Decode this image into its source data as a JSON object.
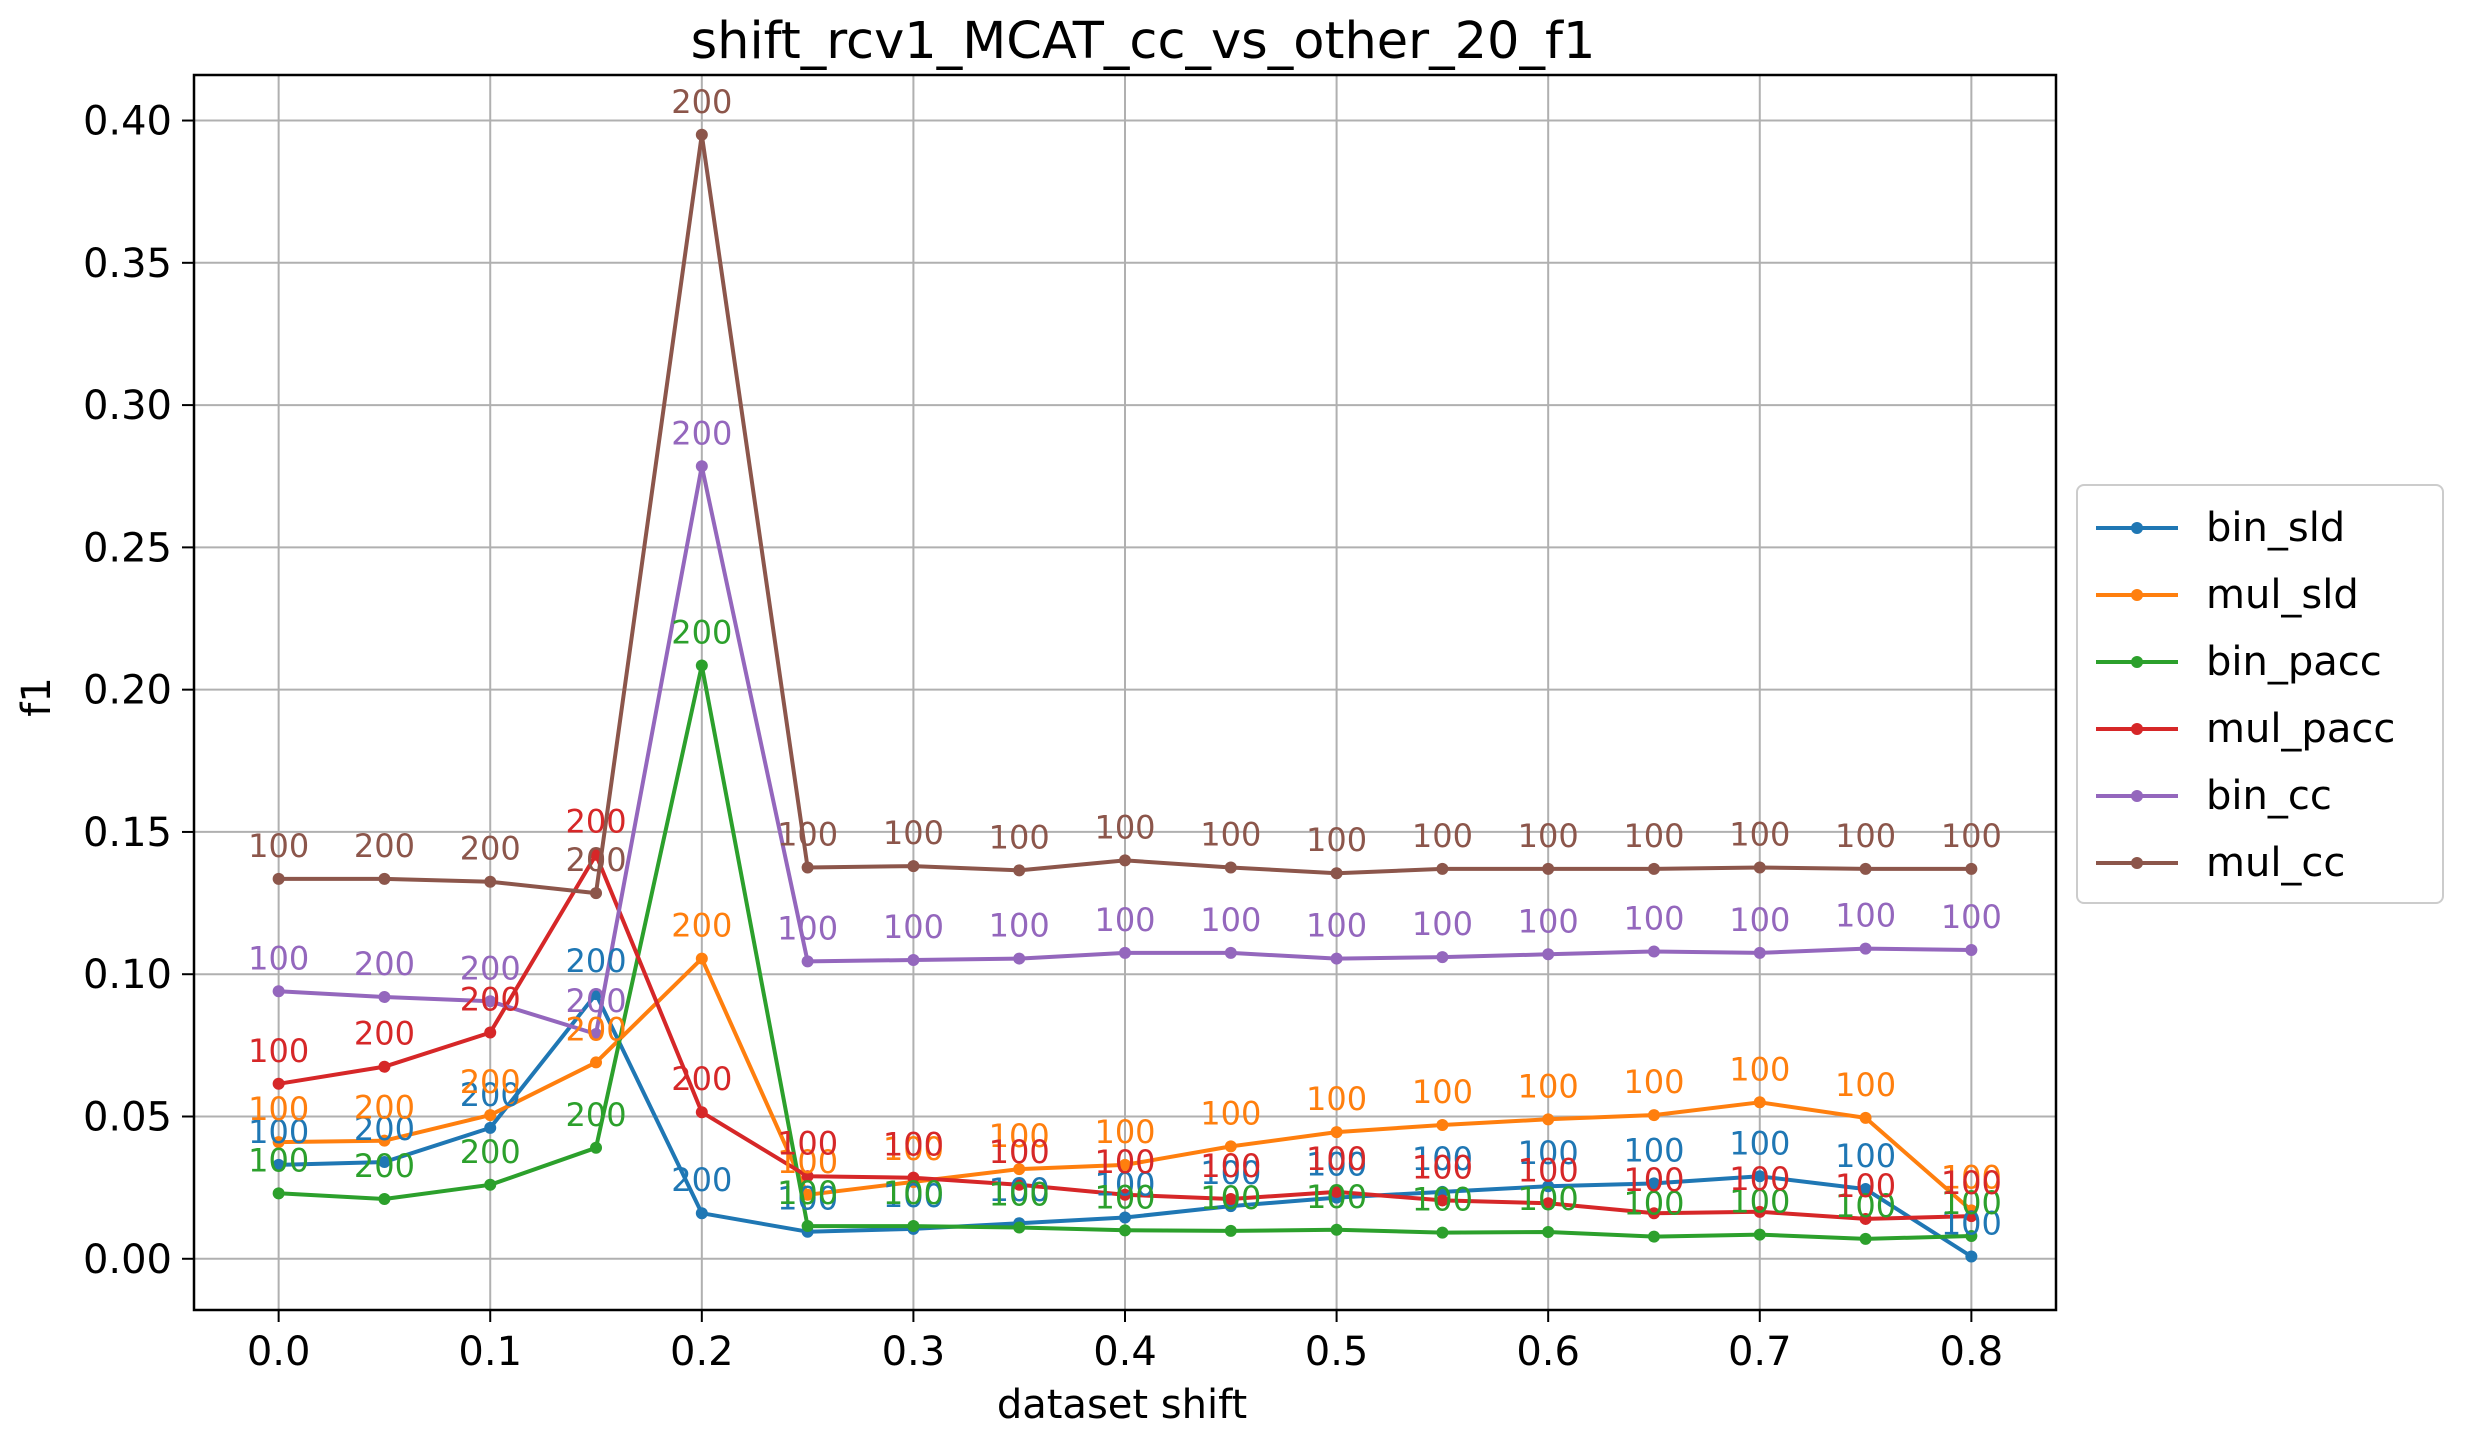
{
  "chart_data": {
    "type": "line",
    "title": "shift_rcv1_MCAT_cc_vs_other_20_f1",
    "xlabel": "dataset shift",
    "ylabel": "f1",
    "xlim": [
      -0.04,
      0.84
    ],
    "ylim": [
      -0.018,
      0.416
    ],
    "xticks": [
      "0.0",
      "0.1",
      "0.2",
      "0.3",
      "0.4",
      "0.5",
      "0.6",
      "0.7",
      "0.8"
    ],
    "yticks": [
      "0.00",
      "0.05",
      "0.10",
      "0.15",
      "0.20",
      "0.25",
      "0.30",
      "0.35",
      "0.40"
    ],
    "grid": true,
    "legend_position": "center-right",
    "x": [
      0.0,
      0.05,
      0.1,
      0.15,
      0.2,
      0.25,
      0.3,
      0.35,
      0.4,
      0.45,
      0.5,
      0.55,
      0.6,
      0.65,
      0.7,
      0.75,
      0.8
    ],
    "series": [
      {
        "name": "bin_sld",
        "color": "#1f77b4",
        "values": [
          0.033,
          0.034,
          0.046,
          0.093,
          0.016,
          0.0095,
          0.0105,
          0.0125,
          0.0145,
          0.0185,
          0.0215,
          0.0235,
          0.0255,
          0.0265,
          0.029,
          0.0245,
          0.0008
        ],
        "labels": [
          "100",
          "200",
          "200",
          "200",
          "200",
          "100",
          "100",
          "100",
          "100",
          "100",
          "100",
          "100",
          "100",
          "100",
          "100",
          "100",
          "100"
        ]
      },
      {
        "name": "mul_sld",
        "color": "#ff7f0e",
        "values": [
          0.041,
          0.0415,
          0.0505,
          0.069,
          0.1055,
          0.0225,
          0.027,
          0.0315,
          0.033,
          0.0395,
          0.0445,
          0.047,
          0.049,
          0.0505,
          0.055,
          0.0495,
          0.017
        ],
        "labels": [
          "100",
          "200",
          "200",
          "200",
          "200",
          "100",
          "100",
          "100",
          "100",
          "100",
          "100",
          "100",
          "100",
          "100",
          "100",
          "100",
          "100"
        ]
      },
      {
        "name": "bin_pacc",
        "color": "#2ca02c",
        "values": [
          0.023,
          0.021,
          0.026,
          0.039,
          0.2085,
          0.0115,
          0.0115,
          0.011,
          0.01,
          0.0098,
          0.0102,
          0.0092,
          0.0094,
          0.0078,
          0.0085,
          0.007,
          0.008
        ],
        "labels": [
          "100",
          "200",
          "200",
          "200",
          "200",
          "100",
          "100",
          "100",
          "100",
          "100",
          "100",
          "100",
          "100",
          "100",
          "100",
          "100",
          "100"
        ]
      },
      {
        "name": "mul_pacc",
        "color": "#d62728",
        "values": [
          0.0615,
          0.0675,
          0.0795,
          0.142,
          0.0515,
          0.029,
          0.0285,
          0.026,
          0.0225,
          0.021,
          0.0235,
          0.0205,
          0.0195,
          0.016,
          0.0165,
          0.014,
          0.015
        ],
        "labels": [
          "100",
          "200",
          "200",
          "200",
          "200",
          "100",
          "100",
          "100",
          "100",
          "100",
          "100",
          "100",
          "100",
          "100",
          "100",
          "100",
          "100"
        ]
      },
      {
        "name": "bin_cc",
        "color": "#9467bd",
        "values": [
          0.094,
          0.092,
          0.0905,
          0.079,
          0.2785,
          0.1045,
          0.105,
          0.1055,
          0.1075,
          0.1075,
          0.1055,
          0.106,
          0.107,
          0.108,
          0.1075,
          0.109,
          0.1085
        ],
        "labels": [
          "100",
          "200",
          "200",
          "200",
          "200",
          "100",
          "100",
          "100",
          "100",
          "100",
          "100",
          "100",
          "100",
          "100",
          "100",
          "100",
          "100"
        ]
      },
      {
        "name": "mul_cc",
        "color": "#8c564b",
        "values": [
          0.1335,
          0.1335,
          0.1325,
          0.1285,
          0.395,
          0.1375,
          0.138,
          0.1365,
          0.14,
          0.1375,
          0.1355,
          0.137,
          0.137,
          0.137,
          0.1375,
          0.137,
          0.137
        ],
        "labels": [
          "100",
          "200",
          "200",
          "200",
          "200",
          "100",
          "100",
          "100",
          "100",
          "100",
          "100",
          "100",
          "100",
          "100",
          "100",
          "100",
          "100"
        ]
      }
    ]
  }
}
